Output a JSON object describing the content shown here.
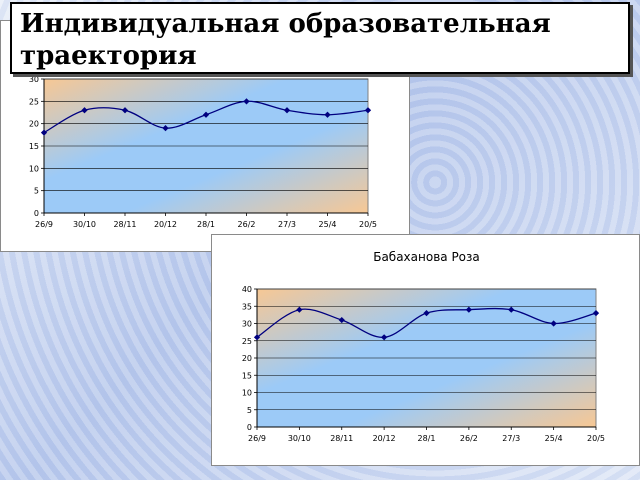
{
  "slide": {
    "title": "Индивидуальная образовательная траектория"
  },
  "chart_data": [
    {
      "type": "line",
      "title": "",
      "categories": [
        "26/9",
        "30/10",
        "28/11",
        "20/12",
        "28/1",
        "26/2",
        "27/3",
        "25/4",
        "20/5"
      ],
      "series": [
        {
          "values": [
            18,
            23,
            23,
            19,
            22,
            25,
            23,
            22,
            23
          ]
        }
      ],
      "ylim": [
        0,
        30
      ],
      "yticks": [
        0,
        5,
        10,
        15,
        20,
        25,
        30
      ],
      "grid": true,
      "line_color": "#000080"
    },
    {
      "type": "line",
      "title": "Бабаханова Роза",
      "categories": [
        "26/9",
        "30/10",
        "28/11",
        "20/12",
        "28/1",
        "26/2",
        "27/3",
        "25/4",
        "20/5"
      ],
      "series": [
        {
          "values": [
            26,
            34,
            31,
            26,
            33,
            34,
            34,
            30,
            33
          ]
        }
      ],
      "ylim": [
        0,
        40
      ],
      "yticks": [
        0,
        5,
        10,
        15,
        20,
        25,
        30,
        35,
        40
      ],
      "grid": true,
      "line_color": "#000080"
    }
  ]
}
